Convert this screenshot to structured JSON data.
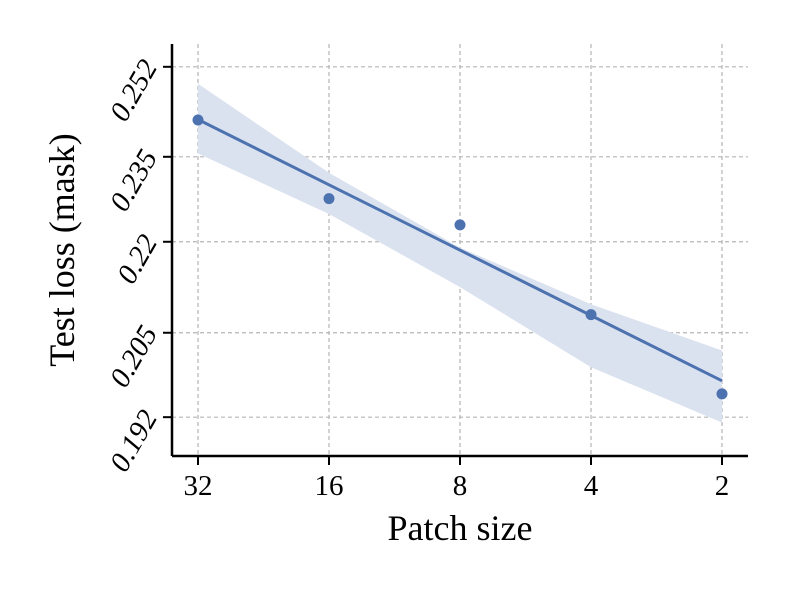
{
  "chart_data": {
    "type": "scatter",
    "title": "",
    "xlabel": "Patch size",
    "ylabel": "Test loss (mask)",
    "x_scale": "log2-reversed",
    "x_ticks": [
      "32",
      "16",
      "8",
      "4",
      "2"
    ],
    "y_scale": "log",
    "y_ticks": [
      "0.192",
      "0.205",
      "0.22",
      "0.235",
      "0.252"
    ],
    "ylim": [
      0.1863,
      0.2565
    ],
    "grid": true,
    "series": [
      {
        "x": [
          32,
          16,
          8,
          4,
          2
        ],
        "y": [
          0.2418,
          0.2275,
          0.2229,
          0.2079,
          0.1955
        ],
        "fit_line": {
          "x": [
            32,
            2
          ],
          "y": [
            0.2419,
            0.1975
          ]
        },
        "confidence_band": {
          "x": [
            32,
            16,
            8,
            4,
            2
          ],
          "upper": [
            0.2487,
            0.2321,
            0.219,
            0.2096,
            0.2022
          ],
          "lower": [
            0.2356,
            0.2248,
            0.2124,
            0.1996,
            0.1912
          ]
        }
      }
    ],
    "colors": {
      "points": "#4c72b0",
      "line": "#4c72b0",
      "band": "#dbe2ef",
      "grid": "#b5b5b5",
      "axis": "#000000"
    }
  }
}
